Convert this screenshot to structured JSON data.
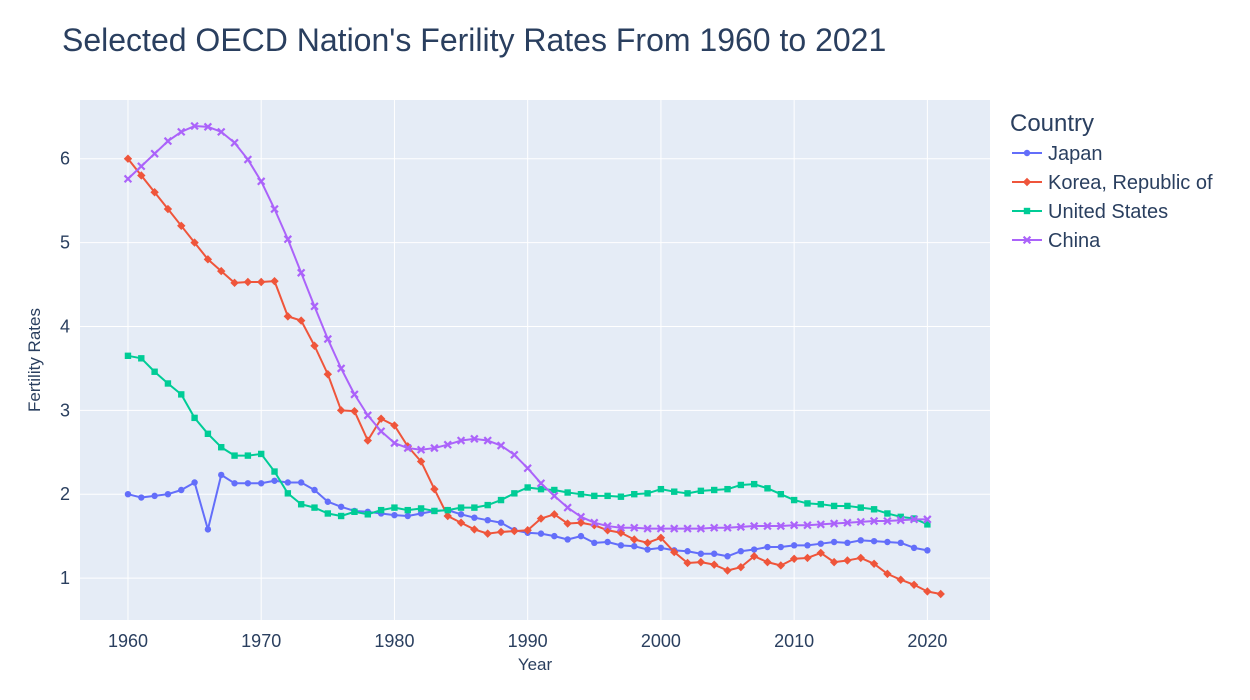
{
  "chart_data": {
    "type": "line",
    "title": "Selected OECD Nation's Ferility Rates From 1960 to 2021",
    "xlabel": "Year",
    "ylabel": "Fertility Rates",
    "xlim": [
      1960,
      2021
    ],
    "ylim": [
      0.5,
      6.7
    ],
    "x_ticks": [
      1960,
      1970,
      1980,
      1990,
      2000,
      2010,
      2020
    ],
    "y_ticks": [
      1,
      2,
      3,
      4,
      5,
      6
    ],
    "grid": true,
    "background": "#e5ecf6",
    "legend": {
      "title": "Country",
      "position": "right"
    },
    "series": [
      {
        "name": "Japan",
        "color": "#636efa",
        "marker": "circle",
        "x": [
          1960,
          1961,
          1962,
          1963,
          1964,
          1965,
          1966,
          1967,
          1968,
          1969,
          1970,
          1971,
          1972,
          1973,
          1974,
          1975,
          1976,
          1977,
          1978,
          1979,
          1980,
          1981,
          1982,
          1983,
          1984,
          1985,
          1986,
          1987,
          1988,
          1989,
          1990,
          1991,
          1992,
          1993,
          1994,
          1995,
          1996,
          1997,
          1998,
          1999,
          2000,
          2001,
          2002,
          2003,
          2004,
          2005,
          2006,
          2007,
          2008,
          2009,
          2010,
          2011,
          2012,
          2013,
          2014,
          2015,
          2016,
          2017,
          2018,
          2019,
          2020
        ],
        "values": [
          2.0,
          1.96,
          1.98,
          2.0,
          2.05,
          2.14,
          1.58,
          2.23,
          2.13,
          2.13,
          2.13,
          2.16,
          2.14,
          2.14,
          2.05,
          1.91,
          1.85,
          1.8,
          1.79,
          1.77,
          1.75,
          1.74,
          1.77,
          1.8,
          1.81,
          1.76,
          1.72,
          1.69,
          1.66,
          1.57,
          1.54,
          1.53,
          1.5,
          1.46,
          1.5,
          1.42,
          1.43,
          1.39,
          1.38,
          1.34,
          1.36,
          1.33,
          1.32,
          1.29,
          1.29,
          1.26,
          1.32,
          1.34,
          1.37,
          1.37,
          1.39,
          1.39,
          1.41,
          1.43,
          1.42,
          1.45,
          1.44,
          1.43,
          1.42,
          1.36,
          1.33
        ]
      },
      {
        "name": "Korea, Republic of",
        "color": "#ef553b",
        "marker": "diamond",
        "x": [
          1960,
          1961,
          1962,
          1963,
          1964,
          1965,
          1966,
          1967,
          1968,
          1969,
          1970,
          1971,
          1972,
          1973,
          1974,
          1975,
          1976,
          1977,
          1978,
          1979,
          1980,
          1981,
          1982,
          1983,
          1984,
          1985,
          1986,
          1987,
          1988,
          1989,
          1990,
          1991,
          1992,
          1993,
          1994,
          1995,
          1996,
          1997,
          1998,
          1999,
          2000,
          2001,
          2002,
          2003,
          2004,
          2005,
          2006,
          2007,
          2008,
          2009,
          2010,
          2011,
          2012,
          2013,
          2014,
          2015,
          2016,
          2017,
          2018,
          2019,
          2020,
          2021
        ],
        "values": [
          6.0,
          5.8,
          5.6,
          5.4,
          5.2,
          5.0,
          4.8,
          4.66,
          4.52,
          4.53,
          4.53,
          4.54,
          4.12,
          4.07,
          3.77,
          3.43,
          3.0,
          2.99,
          2.64,
          2.9,
          2.82,
          2.57,
          2.39,
          2.06,
          1.74,
          1.66,
          1.58,
          1.53,
          1.55,
          1.56,
          1.57,
          1.71,
          1.76,
          1.65,
          1.66,
          1.63,
          1.57,
          1.54,
          1.46,
          1.42,
          1.48,
          1.31,
          1.18,
          1.19,
          1.16,
          1.09,
          1.13,
          1.26,
          1.19,
          1.15,
          1.23,
          1.24,
          1.3,
          1.19,
          1.21,
          1.24,
          1.17,
          1.05,
          0.98,
          0.92,
          0.84,
          0.81
        ]
      },
      {
        "name": "United States",
        "color": "#00cc96",
        "marker": "square",
        "x": [
          1960,
          1961,
          1962,
          1963,
          1964,
          1965,
          1966,
          1967,
          1968,
          1969,
          1970,
          1971,
          1972,
          1973,
          1974,
          1975,
          1976,
          1977,
          1978,
          1979,
          1980,
          1981,
          1982,
          1983,
          1984,
          1985,
          1986,
          1987,
          1988,
          1989,
          1990,
          1991,
          1992,
          1993,
          1994,
          1995,
          1996,
          1997,
          1998,
          1999,
          2000,
          2001,
          2002,
          2003,
          2004,
          2005,
          2006,
          2007,
          2008,
          2009,
          2010,
          2011,
          2012,
          2013,
          2014,
          2015,
          2016,
          2017,
          2018,
          2019,
          2020
        ],
        "values": [
          3.65,
          3.62,
          3.46,
          3.32,
          3.19,
          2.91,
          2.72,
          2.56,
          2.46,
          2.46,
          2.48,
          2.27,
          2.01,
          1.88,
          1.84,
          1.77,
          1.74,
          1.79,
          1.76,
          1.81,
          1.84,
          1.81,
          1.83,
          1.8,
          1.81,
          1.84,
          1.84,
          1.87,
          1.93,
          2.01,
          2.08,
          2.06,
          2.05,
          2.02,
          2.0,
          1.98,
          1.98,
          1.97,
          2.0,
          2.01,
          2.06,
          2.03,
          2.01,
          2.04,
          2.05,
          2.06,
          2.11,
          2.12,
          2.07,
          2.0,
          1.93,
          1.89,
          1.88,
          1.86,
          1.86,
          1.84,
          1.82,
          1.77,
          1.73,
          1.71,
          1.64
        ]
      },
      {
        "name": "China",
        "color": "#ab63fa",
        "marker": "x",
        "x": [
          1960,
          1961,
          1962,
          1963,
          1964,
          1965,
          1966,
          1967,
          1968,
          1969,
          1970,
          1971,
          1972,
          1973,
          1974,
          1975,
          1976,
          1977,
          1978,
          1979,
          1980,
          1981,
          1982,
          1983,
          1984,
          1985,
          1986,
          1987,
          1988,
          1989,
          1990,
          1991,
          1992,
          1993,
          1994,
          1995,
          1996,
          1997,
          1998,
          1999,
          2000,
          2001,
          2002,
          2003,
          2004,
          2005,
          2006,
          2007,
          2008,
          2009,
          2010,
          2011,
          2012,
          2013,
          2014,
          2015,
          2016,
          2017,
          2018,
          2019,
          2020
        ],
        "values": [
          5.76,
          5.91,
          6.06,
          6.21,
          6.32,
          6.39,
          6.38,
          6.32,
          6.19,
          5.99,
          5.73,
          5.4,
          5.04,
          4.64,
          4.24,
          3.85,
          3.5,
          3.19,
          2.94,
          2.75,
          2.61,
          2.55,
          2.53,
          2.55,
          2.59,
          2.64,
          2.66,
          2.64,
          2.58,
          2.47,
          2.31,
          2.13,
          1.98,
          1.84,
          1.73,
          1.66,
          1.62,
          1.6,
          1.6,
          1.59,
          1.59,
          1.59,
          1.59,
          1.59,
          1.6,
          1.6,
          1.61,
          1.62,
          1.62,
          1.62,
          1.63,
          1.63,
          1.64,
          1.65,
          1.66,
          1.67,
          1.68,
          1.68,
          1.69,
          1.7,
          1.7
        ]
      }
    ]
  }
}
